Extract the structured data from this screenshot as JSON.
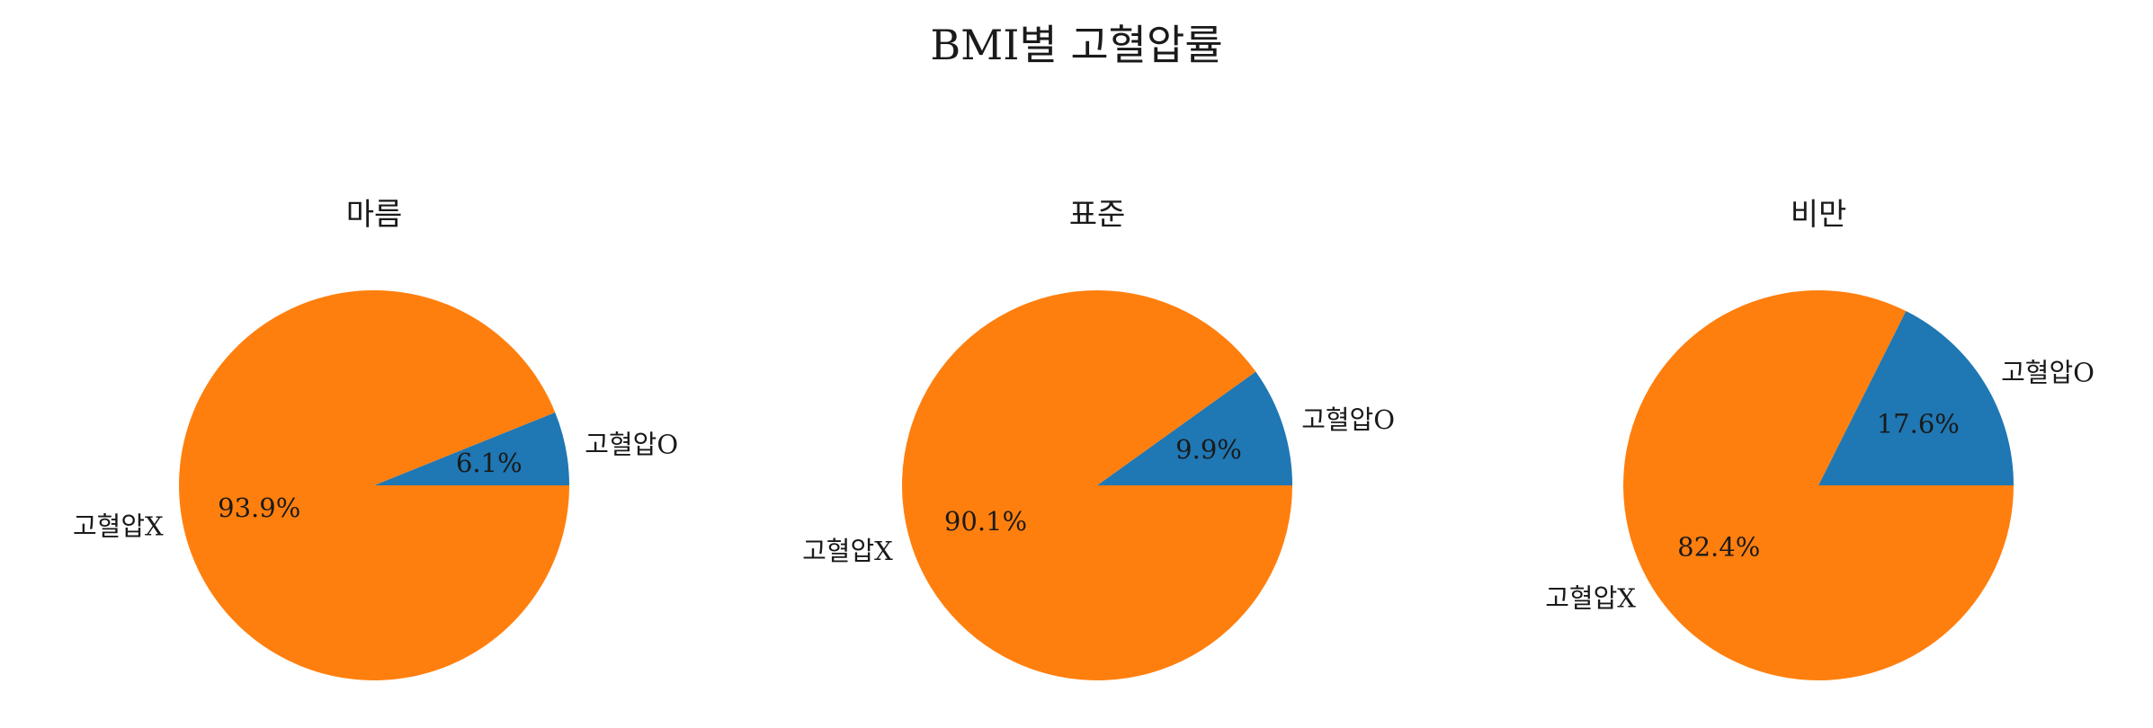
{
  "chart_data": {
    "type": "pie",
    "title": "BMI별 고혈압률",
    "colors": [
      "#1f77b4",
      "#ff7f0e"
    ],
    "charts": [
      {
        "title": "마름",
        "slices": [
          {
            "label": "고혈압O",
            "value": 6.1,
            "pct_text": "6.1%"
          },
          {
            "label": "고혈압X",
            "value": 93.9,
            "pct_text": "93.9%"
          }
        ]
      },
      {
        "title": "표준",
        "slices": [
          {
            "label": "고혈압O",
            "value": 9.9,
            "pct_text": "9.9%"
          },
          {
            "label": "고혈압X",
            "value": 90.1,
            "pct_text": "90.1%"
          }
        ]
      },
      {
        "title": "비만",
        "slices": [
          {
            "label": "고혈압O",
            "value": 17.6,
            "pct_text": "17.6%"
          },
          {
            "label": "고혈압X",
            "value": 82.4,
            "pct_text": "82.4%"
          }
        ]
      }
    ]
  }
}
